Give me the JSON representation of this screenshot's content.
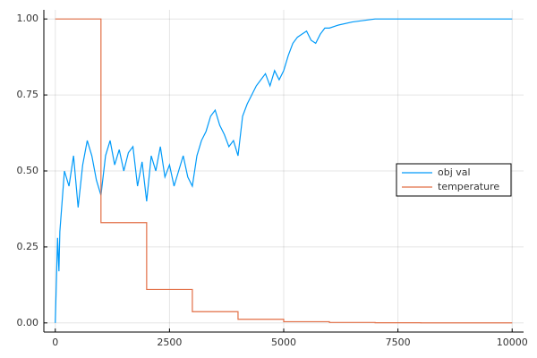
{
  "chart_data": {
    "type": "line",
    "xlim": [
      -250,
      10250
    ],
    "ylim": [
      -0.03,
      1.03
    ],
    "xticks": [
      0,
      2500,
      5000,
      7500,
      10000
    ],
    "yticks": [
      {
        "value": 0,
        "label": "0.00"
      },
      {
        "value": 0.25,
        "label": "0.25"
      },
      {
        "value": 0.5,
        "label": "0.50"
      },
      {
        "value": 0.75,
        "label": "0.75"
      },
      {
        "value": 1,
        "label": "1.00"
      }
    ],
    "grid": true,
    "legend": "right",
    "series": [
      {
        "name": "obj val",
        "color": "#009af9",
        "x": [
          0,
          50,
          80,
          100,
          200,
          300,
          400,
          500,
          600,
          700,
          800,
          900,
          1000,
          1100,
          1200,
          1300,
          1400,
          1500,
          1600,
          1700,
          1800,
          1900,
          2000,
          2100,
          2200,
          2300,
          2400,
          2500,
          2600,
          2700,
          2800,
          2900,
          3000,
          3100,
          3200,
          3300,
          3400,
          3500,
          3600,
          3700,
          3800,
          3900,
          4000,
          4100,
          4200,
          4300,
          4400,
          4500,
          4600,
          4700,
          4800,
          4900,
          5000,
          5100,
          5200,
          5300,
          5400,
          5500,
          5600,
          5700,
          5800,
          5900,
          6000,
          6200,
          6500,
          7000,
          8000,
          10000
        ],
        "values": [
          0,
          0.28,
          0.17,
          0.3,
          0.5,
          0.45,
          0.55,
          0.38,
          0.52,
          0.6,
          0.55,
          0.47,
          0.42,
          0.55,
          0.6,
          0.52,
          0.57,
          0.5,
          0.56,
          0.58,
          0.45,
          0.53,
          0.4,
          0.55,
          0.5,
          0.58,
          0.48,
          0.52,
          0.45,
          0.5,
          0.55,
          0.48,
          0.45,
          0.55,
          0.6,
          0.63,
          0.68,
          0.7,
          0.65,
          0.62,
          0.58,
          0.6,
          0.55,
          0.68,
          0.72,
          0.75,
          0.78,
          0.8,
          0.82,
          0.78,
          0.83,
          0.8,
          0.83,
          0.88,
          0.92,
          0.94,
          0.95,
          0.96,
          0.93,
          0.92,
          0.95,
          0.97,
          0.97,
          0.98,
          0.99,
          1.0,
          1.0,
          1.0
        ]
      },
      {
        "name": "temperature",
        "color": "#e26f46",
        "x": [
          0,
          1000,
          1000,
          2000,
          2000,
          3000,
          3000,
          4000,
          4000,
          5000,
          5000,
          6000,
          6000,
          7000,
          7000,
          8000,
          8000,
          10000
        ],
        "values": [
          1,
          1,
          0.33,
          0.33,
          0.11,
          0.11,
          0.037,
          0.037,
          0.012,
          0.012,
          0.004,
          0.004,
          0.0014,
          0.0014,
          0.0005,
          0.0005,
          0.0002,
          0.0002
        ]
      }
    ]
  }
}
